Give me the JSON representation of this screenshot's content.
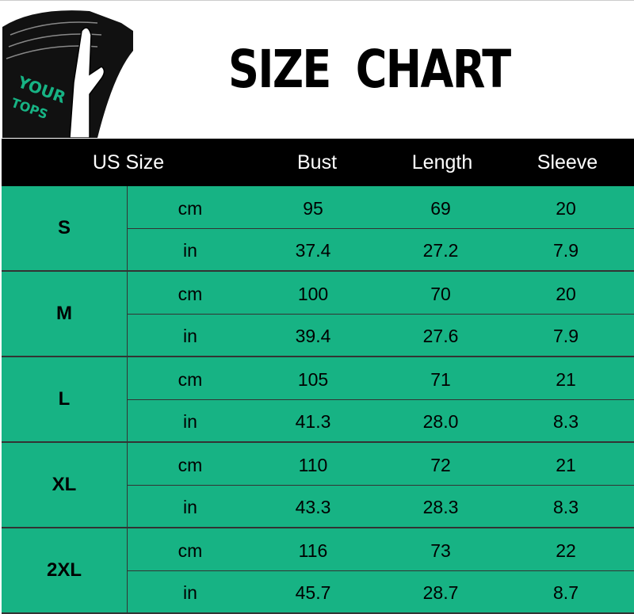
{
  "logo": {
    "text": "YOUR TOPS"
  },
  "title": "SIZE CHART",
  "colors": {
    "accent": "#17b384",
    "header_bg": "#000000"
  },
  "headers": [
    "US Size",
    "Bust",
    "Length",
    "Sleeve"
  ],
  "sizes": [
    {
      "size": "S",
      "rows": [
        {
          "unit": "cm",
          "bust": "95",
          "length": "69",
          "sleeve": "20"
        },
        {
          "unit": "in",
          "bust": "37.4",
          "length": "27.2",
          "sleeve": "7.9"
        }
      ]
    },
    {
      "size": "M",
      "rows": [
        {
          "unit": "cm",
          "bust": "100",
          "length": "70",
          "sleeve": "20"
        },
        {
          "unit": "in",
          "bust": "39.4",
          "length": "27.6",
          "sleeve": "7.9"
        }
      ]
    },
    {
      "size": "L",
      "rows": [
        {
          "unit": "cm",
          "bust": "105",
          "length": "71",
          "sleeve": "21"
        },
        {
          "unit": "in",
          "bust": "41.3",
          "length": "28.0",
          "sleeve": "8.3"
        }
      ]
    },
    {
      "size": "XL",
      "rows": [
        {
          "unit": "cm",
          "bust": "110",
          "length": "72",
          "sleeve": "21"
        },
        {
          "unit": "in",
          "bust": "43.3",
          "length": "28.3",
          "sleeve": "8.3"
        }
      ]
    },
    {
      "size": "2XL",
      "rows": [
        {
          "unit": "cm",
          "bust": "116",
          "length": "73",
          "sleeve": "22"
        },
        {
          "unit": "in",
          "bust": "45.7",
          "length": "28.7",
          "sleeve": "8.7"
        }
      ]
    }
  ]
}
